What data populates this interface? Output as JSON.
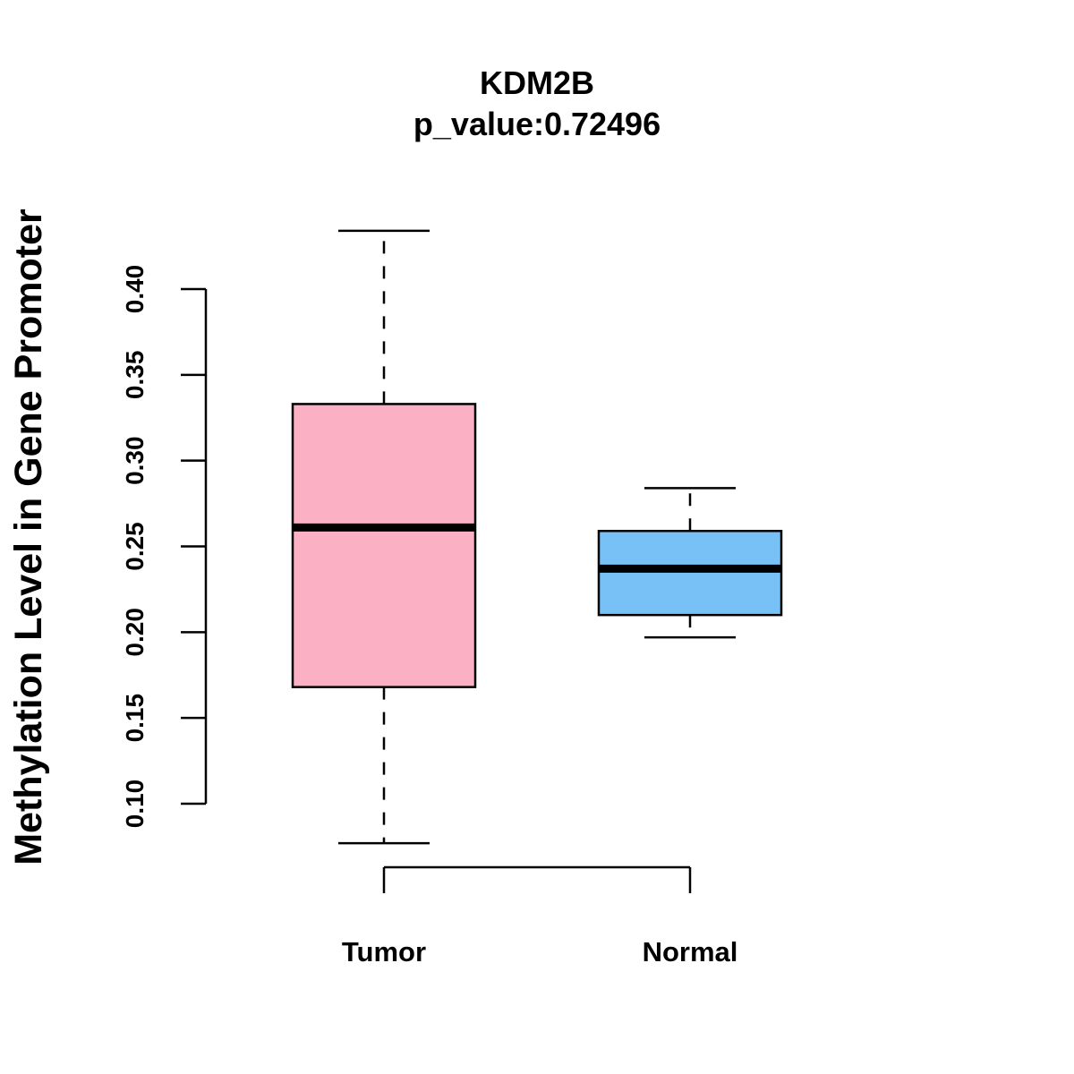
{
  "chart_data": {
    "type": "box",
    "title": "KDM2B",
    "subtitle": "p_value:0.72496",
    "xlabel": "",
    "ylabel": "Methylation Level in Gene Promoter",
    "ylim": [
      0.1,
      0.4
    ],
    "yticks": [
      "0.10",
      "0.15",
      "0.20",
      "0.25",
      "0.30",
      "0.35",
      "0.40"
    ],
    "grid": false,
    "legend": "none",
    "groups": [
      {
        "label": "Tumor",
        "color": "#fbb1c3",
        "whisker_low": 0.077,
        "q1": 0.168,
        "median": 0.261,
        "q3": 0.333,
        "whisker_high": 0.434
      },
      {
        "label": "Normal",
        "color": "#78c1f7",
        "whisker_low": 0.197,
        "q1": 0.21,
        "median": 0.237,
        "q3": 0.259,
        "whisker_high": 0.284
      }
    ]
  }
}
